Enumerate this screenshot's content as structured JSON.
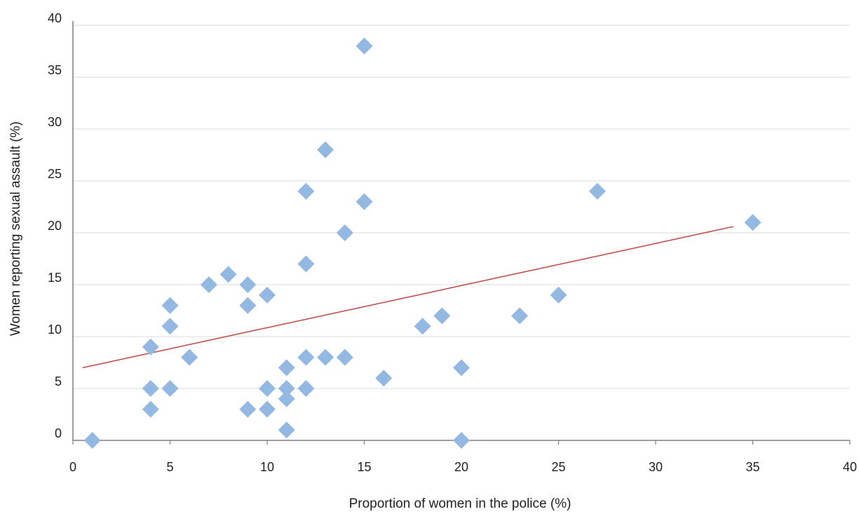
{
  "chart_data": {
    "type": "scatter",
    "title": "",
    "xlabel": "Proportion of women in the police (%)",
    "ylabel": "Women reporting sexual assault (%)",
    "xlim": [
      0,
      40
    ],
    "ylim": [
      0,
      40
    ],
    "xticks": [
      0,
      5,
      10,
      15,
      20,
      25,
      30,
      35,
      40
    ],
    "yticks": [
      0,
      5,
      10,
      15,
      20,
      25,
      30,
      35,
      40
    ],
    "grid": "horizontal",
    "legend": "none",
    "marker": "diamond",
    "colors": {
      "points": "#93b8e2",
      "trendline": "#c0504d",
      "grid": "#e2e2e2",
      "axis": "#7f7f7f"
    },
    "points": [
      {
        "x": 1,
        "y": 0
      },
      {
        "x": 4,
        "y": 9
      },
      {
        "x": 4,
        "y": 5
      },
      {
        "x": 4,
        "y": 3
      },
      {
        "x": 5,
        "y": 13
      },
      {
        "x": 5,
        "y": 11
      },
      {
        "x": 5,
        "y": 5
      },
      {
        "x": 6,
        "y": 8
      },
      {
        "x": 7,
        "y": 15
      },
      {
        "x": 8,
        "y": 16
      },
      {
        "x": 9,
        "y": 15
      },
      {
        "x": 9,
        "y": 13
      },
      {
        "x": 9,
        "y": 3
      },
      {
        "x": 10,
        "y": 14
      },
      {
        "x": 10,
        "y": 5
      },
      {
        "x": 10,
        "y": 3
      },
      {
        "x": 11,
        "y": 7
      },
      {
        "x": 11,
        "y": 5
      },
      {
        "x": 11,
        "y": 4
      },
      {
        "x": 11,
        "y": 1
      },
      {
        "x": 12,
        "y": 24
      },
      {
        "x": 12,
        "y": 17
      },
      {
        "x": 12,
        "y": 8
      },
      {
        "x": 12,
        "y": 5
      },
      {
        "x": 13,
        "y": 28
      },
      {
        "x": 13,
        "y": 8
      },
      {
        "x": 14,
        "y": 20
      },
      {
        "x": 14,
        "y": 8
      },
      {
        "x": 15,
        "y": 38
      },
      {
        "x": 15,
        "y": 23
      },
      {
        "x": 16,
        "y": 6
      },
      {
        "x": 18,
        "y": 11
      },
      {
        "x": 19,
        "y": 12
      },
      {
        "x": 20,
        "y": 7
      },
      {
        "x": 20,
        "y": 0
      },
      {
        "x": 23,
        "y": 12
      },
      {
        "x": 25,
        "y": 14
      },
      {
        "x": 27,
        "y": 24
      },
      {
        "x": 35,
        "y": 21
      }
    ],
    "trendline": {
      "x": [
        0.5,
        34
      ],
      "y": [
        7,
        20.6
      ]
    }
  }
}
